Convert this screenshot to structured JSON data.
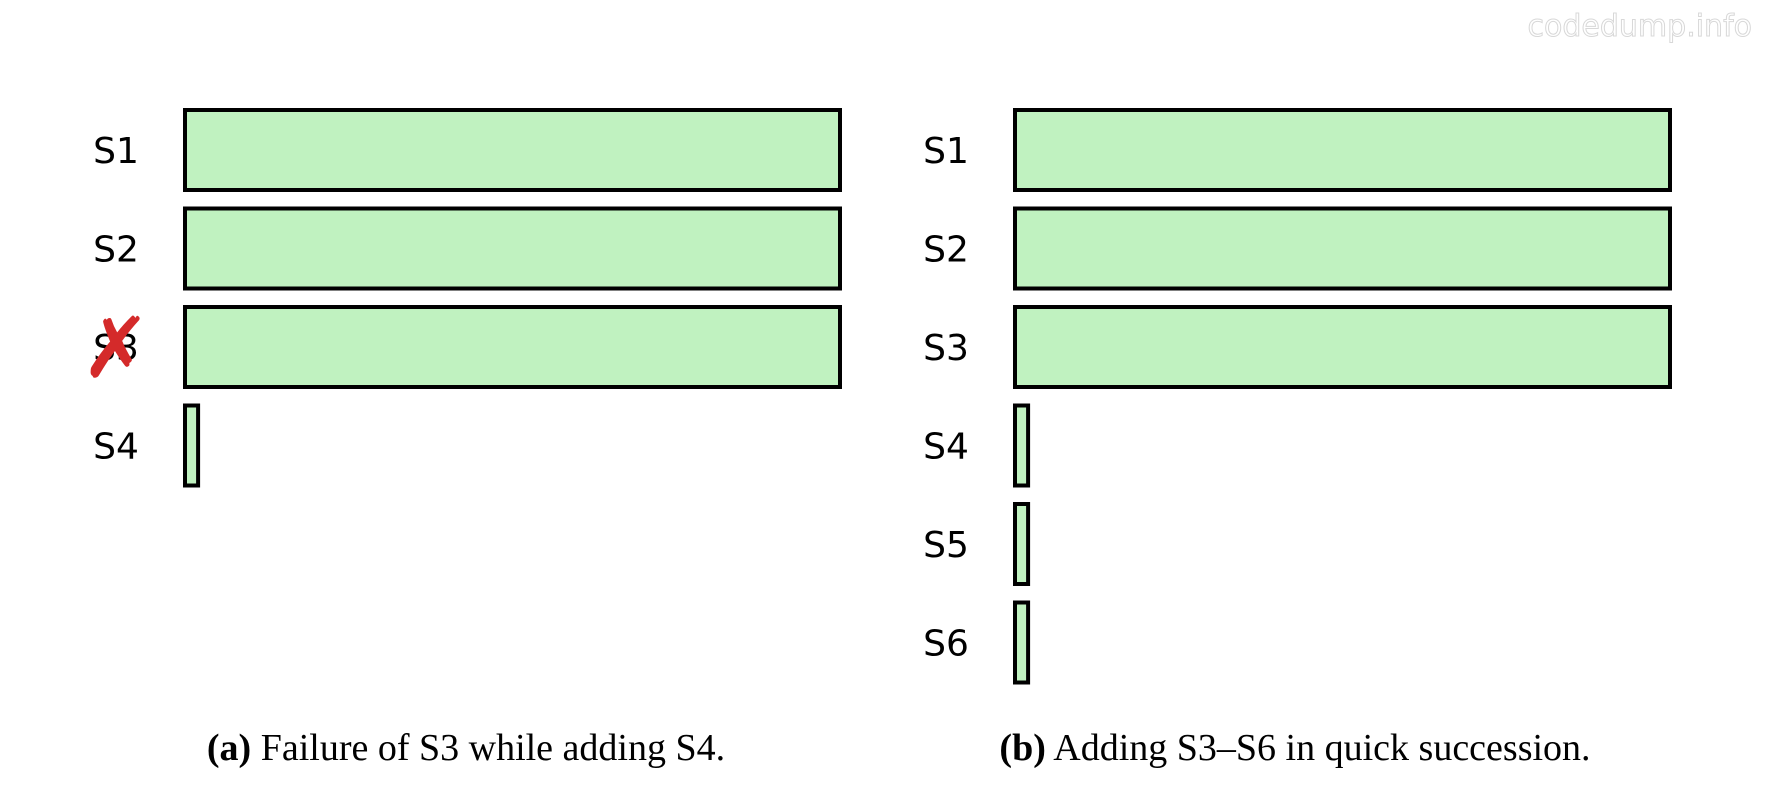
{
  "watermark": "codedump.info",
  "colors": {
    "bar_fill": "#c0f2c0",
    "bar_stroke": "#000000",
    "fail_mark": "#d42a2a"
  },
  "panels": [
    {
      "id": "a",
      "caption_tag": "(a)",
      "caption_text": " Failure of S3 while adding S4.",
      "servers": [
        {
          "label": "S1",
          "progress": 1.0,
          "failed": false
        },
        {
          "label": "S2",
          "progress": 1.0,
          "failed": false
        },
        {
          "label": "S3",
          "progress": 1.0,
          "failed": true
        },
        {
          "label": "S4",
          "progress": 0.02,
          "failed": false
        }
      ]
    },
    {
      "id": "b",
      "caption_tag": "(b)",
      "caption_text": " Adding S3–S6 in quick succession.",
      "servers": [
        {
          "label": "S1",
          "progress": 1.0,
          "failed": false
        },
        {
          "label": "S2",
          "progress": 1.0,
          "failed": false
        },
        {
          "label": "S3",
          "progress": 1.0,
          "failed": false
        },
        {
          "label": "S4",
          "progress": 0.02,
          "failed": false
        },
        {
          "label": "S5",
          "progress": 0.02,
          "failed": false
        },
        {
          "label": "S6",
          "progress": 0.02,
          "failed": false
        }
      ]
    }
  ],
  "fail_icon": "cross-icon",
  "fail_glyph": "✗"
}
